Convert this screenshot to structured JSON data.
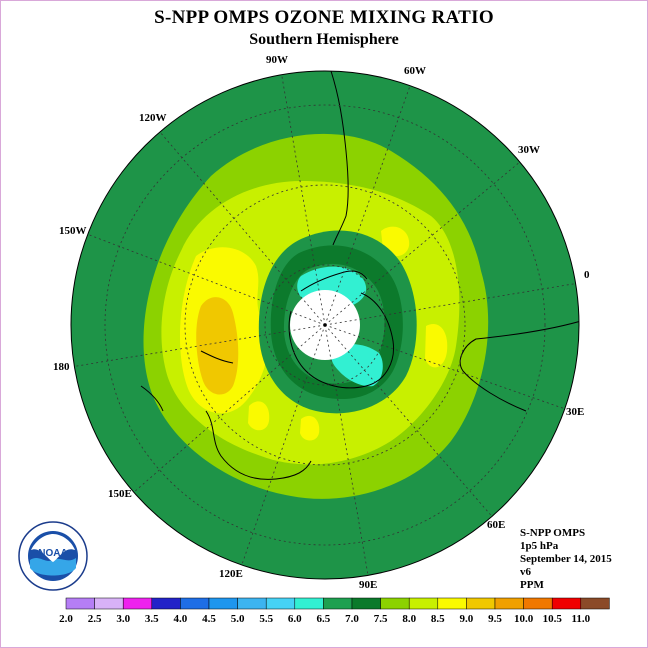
{
  "title": "S-NPP OMPS OZONE MIXING RATIO",
  "subtitle": "Southern Hemisphere",
  "longitude_labels": [
    {
      "text": "90W"
    },
    {
      "text": "60W"
    },
    {
      "text": "120W"
    },
    {
      "text": "30W"
    },
    {
      "text": "150W"
    },
    {
      "text": "0"
    },
    {
      "text": "180"
    },
    {
      "text": "30E"
    },
    {
      "text": "150E"
    },
    {
      "text": "60E"
    },
    {
      "text": "120E"
    },
    {
      "text": "90E"
    }
  ],
  "info": {
    "instrument": "S-NPP OMPS",
    "level": "1p5 hPa",
    "date": "September 14, 2015",
    "version": "v6",
    "units": "PPM"
  },
  "logo": {
    "name": "noaa-logo",
    "text": "NOAA",
    "ring_text": "NATIONAL OCEANIC AND ATMOSPHERIC ADMINISTRATION · U.S. DEPARTMENT OF COMMERCE"
  },
  "colorbar": {
    "tick_labels": [
      "2.0",
      "2.5",
      "3.0",
      "3.5",
      "4.0",
      "4.5",
      "5.0",
      "5.5",
      "6.0",
      "6.5",
      "7.0",
      "7.5",
      "8.0",
      "8.5",
      "9.0",
      "9.5",
      "10.0",
      "10.5",
      "11.0"
    ],
    "colors": [
      "#b57ef5",
      "#d8b2f7",
      "#ee22ee",
      "#2323c8",
      "#1e6ee6",
      "#1e96ee",
      "#3cb4f0",
      "#46d2f5",
      "#32f0d2",
      "#1ea050",
      "#0b7a2b",
      "#8cd200",
      "#c8f000",
      "#fafa00",
      "#f0c800",
      "#f0a000",
      "#f07800",
      "#f00000",
      "#8b4a28"
    ]
  },
  "map_colors": {
    "c65": "#1e9448",
    "c70": "#0c7a2c",
    "c75": "#8cd200",
    "c80": "#c8f000",
    "c85": "#fafa00",
    "c90": "#f0c800",
    "c60": "#32f0d2",
    "missing": "#ffffff"
  }
}
